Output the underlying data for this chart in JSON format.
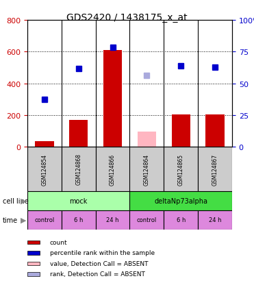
{
  "title": "GDS2420 / 1438175_x_at",
  "samples": [
    "GSM124854",
    "GSM124868",
    "GSM124866",
    "GSM124864",
    "GSM124865",
    "GSM124867"
  ],
  "count_values": [
    35,
    170,
    610,
    null,
    205,
    205
  ],
  "count_absent": [
    null,
    null,
    null,
    95,
    null,
    null
  ],
  "rank_values": [
    300,
    495,
    625,
    null,
    510,
    500
  ],
  "rank_absent": [
    null,
    null,
    null,
    450,
    null,
    null
  ],
  "left_ylim": [
    0,
    800
  ],
  "left_yticks": [
    0,
    200,
    400,
    600,
    800
  ],
  "right_yticks": [
    0,
    25,
    50,
    75,
    100
  ],
  "right_yticklabels": [
    "0",
    "25",
    "50",
    "75",
    "100%"
  ],
  "cell_line_labels": [
    "mock",
    "deltaNp73alpha"
  ],
  "cell_line_spans": [
    [
      0,
      3
    ],
    [
      3,
      6
    ]
  ],
  "cell_line_colors": [
    "#aaffaa",
    "#44dd44"
  ],
  "time_labels": [
    "control",
    "6 h",
    "24 h",
    "control",
    "6 h",
    "24 h"
  ],
  "time_color": "#dd88dd",
  "sample_box_color": "#cccccc",
  "bar_color_present": "#cc0000",
  "bar_color_absent": "#ffb6c1",
  "dot_color_present": "#0000cc",
  "dot_color_absent": "#aaaadd",
  "legend_items": [
    {
      "color": "#cc0000",
      "label": "count"
    },
    {
      "color": "#0000cc",
      "label": "percentile rank within the sample"
    },
    {
      "color": "#ffb6c1",
      "label": "value, Detection Call = ABSENT"
    },
    {
      "color": "#aaaadd",
      "label": "rank, Detection Call = ABSENT"
    }
  ],
  "left_tick_color": "#cc0000",
  "right_tick_color": "#0000cc",
  "fig_width": 3.71,
  "fig_height": 4.14,
  "dpi": 100
}
